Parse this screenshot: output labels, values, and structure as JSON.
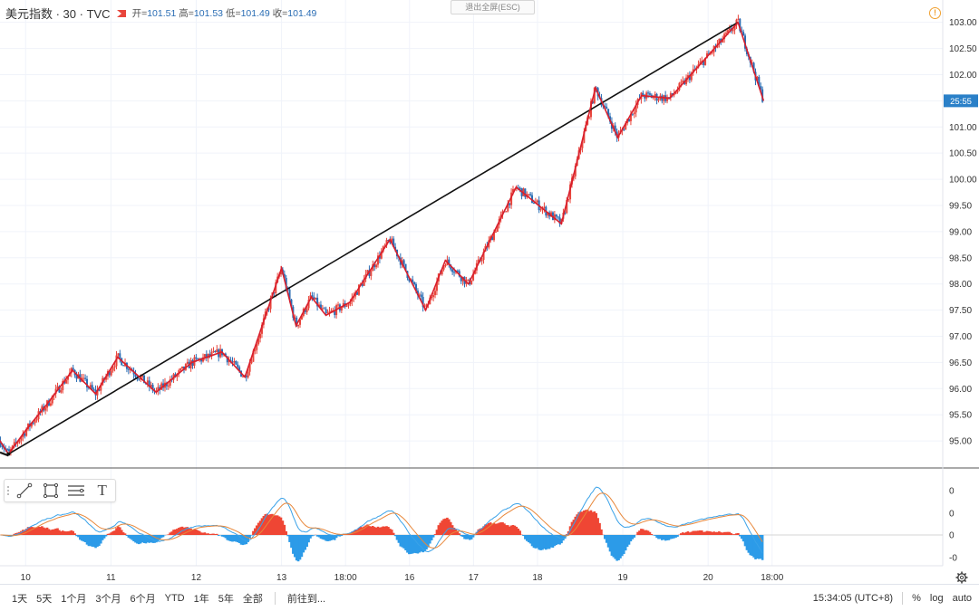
{
  "header": {
    "symbol": "美元指数 · 30 · TVC",
    "open_label": "开",
    "open": "101.51",
    "high_label": "高",
    "high": "101.53",
    "low_label": "低",
    "low": "101.49",
    "close_label": "收",
    "close": "101.49",
    "exit_fullscreen": "退出全屏(ESC)",
    "warning_glyph": "!"
  },
  "colors": {
    "up": "#e8453c",
    "down": "#2a6db4",
    "zigzag": "#d81e2c",
    "trendline": "#111111",
    "macd_pos": "#ef4634",
    "macd_neg": "#2c9be8",
    "price_tag": "#2a80c8"
  },
  "price_tag": "25:55",
  "indicator_ticks": [
    "0",
    "0",
    "0",
    "-0"
  ],
  "bottom": {
    "ranges": [
      "1天",
      "5天",
      "1个月",
      "3个月",
      "6个月",
      "YTD",
      "1年",
      "5年",
      "全部"
    ],
    "goto": "前往到...",
    "clock": "15:34:05 (UTC+8)",
    "percent": "%",
    "log": "log",
    "auto": "auto"
  },
  "toolbar": {
    "icons": [
      "trend-line-icon",
      "rectangle-icon",
      "fib-retracement-icon",
      "text-icon"
    ],
    "text_glyph": "T"
  },
  "chart_data": {
    "type": "candlestick",
    "title": "美元指数 · 30 · TVC",
    "ylim": [
      94.5,
      103.15
    ],
    "y_ticks": [
      "95.00",
      "95.50",
      "96.00",
      "96.50",
      "97.00",
      "97.50",
      "98.00",
      "98.50",
      "99.00",
      "99.50",
      "100.00",
      "100.50",
      "101.00",
      "101.50",
      "102.00",
      "102.50",
      "103.00"
    ],
    "x_tick_labels": [
      "10",
      "11",
      "12",
      "13",
      "18:00",
      "16",
      "17",
      "18",
      "19",
      "20",
      "18:00"
    ],
    "x_range_days": [
      9.7,
      20.75
    ],
    "x_ticks_days": [
      10,
      11,
      12,
      13,
      13.75,
      14.5,
      15.25,
      16,
      17,
      18,
      18.75
    ],
    "trendline": [
      [
        9.8,
        94.75
      ],
      [
        18.35,
        103.0
      ]
    ],
    "zigzag": [
      [
        9.6,
        95.25
      ],
      [
        9.8,
        94.75
      ],
      [
        10.0,
        95.2
      ],
      [
        10.25,
        95.7
      ],
      [
        10.55,
        96.35
      ],
      [
        10.82,
        95.9
      ],
      [
        11.08,
        96.6
      ],
      [
        11.53,
        95.93
      ],
      [
        11.95,
        96.5
      ],
      [
        12.3,
        96.7
      ],
      [
        12.57,
        96.22
      ],
      [
        13.0,
        98.3
      ],
      [
        13.17,
        97.2
      ],
      [
        13.35,
        97.75
      ],
      [
        13.52,
        97.4
      ],
      [
        13.8,
        97.65
      ],
      [
        14.27,
        98.85
      ],
      [
        14.69,
        97.5
      ],
      [
        14.92,
        98.45
      ],
      [
        15.19,
        98.0
      ],
      [
        15.75,
        99.85
      ],
      [
        16.28,
        99.15
      ],
      [
        16.68,
        101.75
      ],
      [
        16.94,
        100.8
      ],
      [
        17.22,
        101.6
      ],
      [
        17.55,
        101.55
      ],
      [
        18.35,
        103.0
      ],
      [
        18.65,
        101.5
      ]
    ],
    "macd_zero_line": 0
  }
}
